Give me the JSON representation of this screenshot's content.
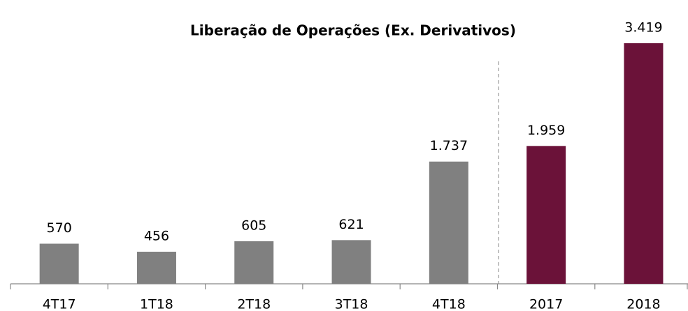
{
  "chart_data": {
    "type": "bar",
    "title": "Liberação de Operações (Ex. Derivativos)",
    "categories": [
      "4T17",
      "1T18",
      "2T18",
      "3T18",
      "4T18",
      "2017",
      "2018"
    ],
    "values": [
      570,
      456,
      605,
      621,
      1737,
      1959,
      3419
    ],
    "value_labels": [
      "570",
      "456",
      "605",
      "621",
      "1.737",
      "1.959",
      "3.419"
    ],
    "colors": [
      "#808080",
      "#808080",
      "#808080",
      "#808080",
      "#808080",
      "#6b1239",
      "#6b1239"
    ]
  }
}
